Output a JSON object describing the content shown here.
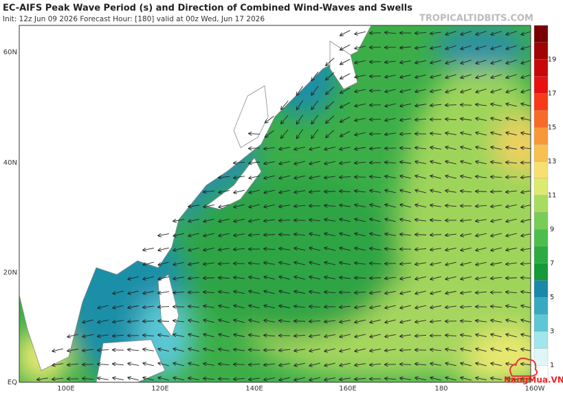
{
  "header": {
    "title": "EC-AIFS Peak Wave Period (s) and Direction of Combined Wind-Waves and Swells",
    "subtitle": "Init: 12z Jun 09 2026   Forecast Hour: [180]   valid at 00z Wed, Jun 17 2026",
    "source": "TROPICALTIDBITS.COM"
  },
  "map": {
    "lat_labels": [
      "60N",
      "40N",
      "20N",
      "EQ"
    ],
    "lon_labels": [
      "100E",
      "120E",
      "140E",
      "160E",
      "180",
      "160W"
    ]
  },
  "colorbar": {
    "labels": [
      "19",
      "17",
      "15",
      "13",
      "11",
      "9",
      "7",
      "5",
      "3",
      "1"
    ]
  },
  "watermark": "NangMua.VN"
}
